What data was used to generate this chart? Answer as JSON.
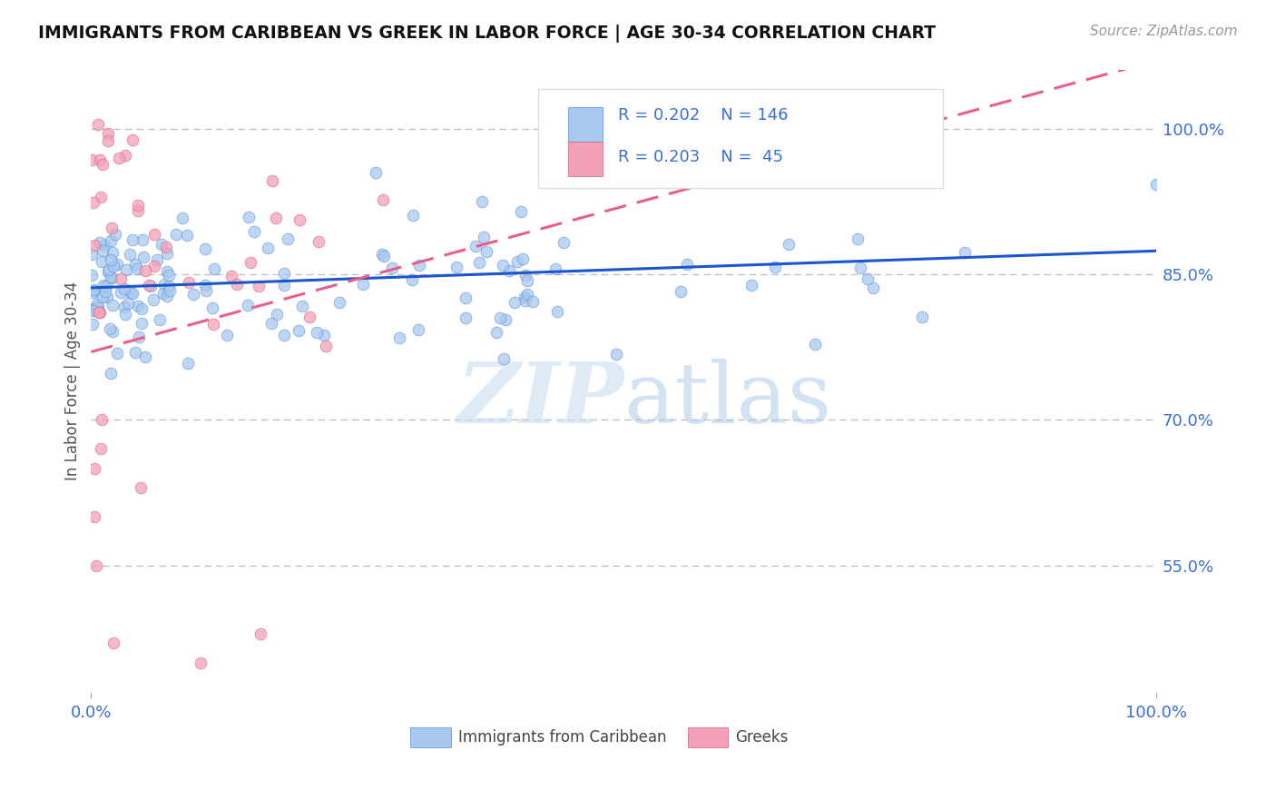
{
  "title": "IMMIGRANTS FROM CARIBBEAN VS GREEK IN LABOR FORCE | AGE 30-34 CORRELATION CHART",
  "source": "Source: ZipAtlas.com",
  "ylabel": "In Labor Force | Age 30-34",
  "y_ticks": [
    0.55,
    0.7,
    0.85,
    1.0
  ],
  "y_tick_labels": [
    "55.0%",
    "70.0%",
    "85.0%",
    "100.0%"
  ],
  "xlim": [
    0.0,
    1.0
  ],
  "ylim": [
    0.42,
    1.06
  ],
  "caribbean_color": "#A8C8F0",
  "greek_color": "#F4A0B8",
  "trend_blue": "#1A56CC",
  "trend_pink": "#E8608A",
  "r_caribbean": 0.202,
  "n_caribbean": 146,
  "r_greek": 0.203,
  "n_greek": 45,
  "legend_labels": [
    "Immigrants from Caribbean",
    "Greeks"
  ],
  "watermark_zip": "ZIP",
  "watermark_atlas": "atlas",
  "background_color": "#ffffff",
  "grid_color": "#bbbbbb",
  "title_color": "#111111",
  "axis_label_color": "#3B6FD4",
  "tick_color": "#3B6FD4"
}
